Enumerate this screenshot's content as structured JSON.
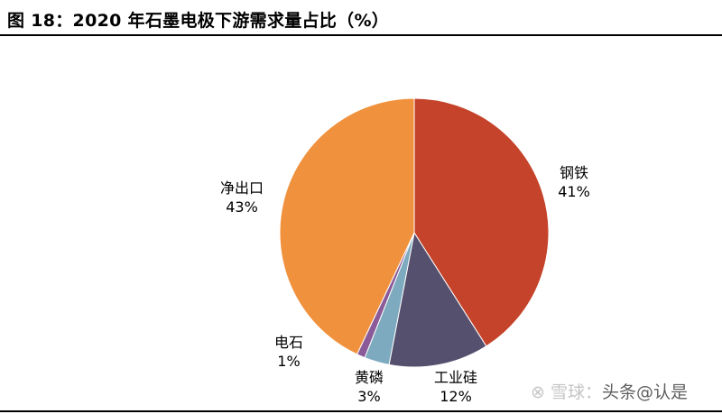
{
  "title": "图 18：2020 年石墨电极下游需求量占比（%）",
  "watermark": {
    "icon": "snowball-logo-icon",
    "brand": "雪球",
    "sep": "：",
    "account": "头条@认是"
  },
  "chart_data": {
    "type": "pie",
    "title": "图 18：2020 年石墨电极下游需求量占比（%）",
    "start": "top",
    "direction": "clockwise",
    "slices": [
      {
        "label": "钢铁",
        "value": 41,
        "pct": "41%",
        "color": "#C4432A"
      },
      {
        "label": "工业硅",
        "value": 12,
        "pct": "12%",
        "color": "#56506F"
      },
      {
        "label": "黄磷",
        "value": 3,
        "pct": "3%",
        "color": "#7DAABF"
      },
      {
        "label": "电石",
        "value": 1,
        "pct": "1%",
        "color": "#8A5B98"
      },
      {
        "label": "净出口",
        "value": 43,
        "pct": "43%",
        "color": "#F0913D"
      }
    ]
  }
}
